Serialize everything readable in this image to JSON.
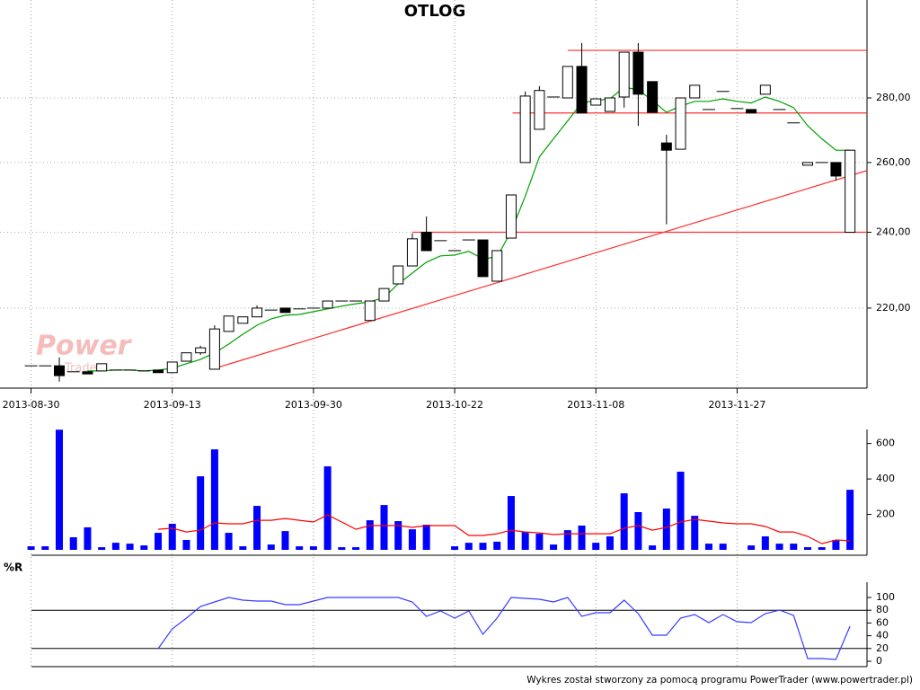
{
  "chart_data": [
    {
      "type": "candlestick",
      "title": "OTLOG",
      "categories": [
        "2013-08-30",
        null,
        null,
        null,
        null,
        null,
        null,
        null,
        null,
        null,
        "2013-09-13",
        null,
        null,
        null,
        null,
        null,
        null,
        null,
        null,
        null,
        "2013-09-30",
        null,
        null,
        null,
        null,
        null,
        null,
        null,
        null,
        null,
        "2013-10-22",
        null,
        null,
        null,
        null,
        null,
        null,
        null,
        null,
        null,
        "2013-11-08",
        null,
        null,
        null,
        null,
        null,
        null,
        null,
        null,
        null,
        "2013-11-27",
        null,
        null,
        null,
        null,
        null,
        null,
        null,
        null
      ],
      "open": [
        205.9,
        205.9,
        205.9,
        204.5,
        204.5,
        204.7,
        204.9,
        204.9,
        204.7,
        204.9,
        204.3,
        207.0,
        209.0,
        205.1,
        214.2,
        216.2,
        217.8,
        219.5,
        220.0,
        219.8,
        220.0,
        220.0,
        221.8,
        221.8,
        216.9,
        221.8,
        226.2,
        230.9,
        240.0,
        237.7,
        235.0,
        237.9,
        237.9,
        226.9,
        238.4,
        260.0,
        270.1,
        280.3,
        280.0,
        290.3,
        277.7,
        275.7,
        280.3,
        295.1,
        285.3,
        265.9,
        264.0,
        280.0,
        276.3,
        282.1,
        276.6,
        276.3,
        281.2,
        276.3,
        272.1,
        259.2,
        260.0,
        260.0,
        240.0
      ],
      "high": [
        205.9,
        205.9,
        207.9,
        204.5,
        204.5,
        206.4,
        204.9,
        204.9,
        204.7,
        204.9,
        206.8,
        209.0,
        210.7,
        215.7,
        218.0,
        217.8,
        220.7,
        219.5,
        220.0,
        219.8,
        220.0,
        221.8,
        221.8,
        221.8,
        221.8,
        225.0,
        230.9,
        239.7,
        244.4,
        237.7,
        235.0,
        237.9,
        237.9,
        235.0,
        250.5,
        282.1,
        283.8,
        280.3,
        290.3,
        298.2,
        279.7,
        280.0,
        295.1,
        298.2,
        285.3,
        268.4,
        280.0,
        284.1,
        276.3,
        282.1,
        276.6,
        276.3,
        284.1,
        276.3,
        272.1,
        260.0,
        260.0,
        260.0,
        263.7
      ],
      "low": [
        205.9,
        205.9,
        202.2,
        204.5,
        204.0,
        204.7,
        204.9,
        204.9,
        204.7,
        204.3,
        204.3,
        207.0,
        208.5,
        205.1,
        214.2,
        216.2,
        217.8,
        219.5,
        218.9,
        219.8,
        220.0,
        220.0,
        221.8,
        221.8,
        216.9,
        221.8,
        226.2,
        230.9,
        235.0,
        237.7,
        235.0,
        237.9,
        228.1,
        226.9,
        238.4,
        260.0,
        270.1,
        280.3,
        280.0,
        275.2,
        277.7,
        275.7,
        276.9,
        271.2,
        275.4,
        242.2,
        264.0,
        280.0,
        276.3,
        282.1,
        276.6,
        275.2,
        281.2,
        276.3,
        272.1,
        259.2,
        260.0,
        254.7,
        240.0
      ],
      "close": [
        205.9,
        205.9,
        203.6,
        204.5,
        204.0,
        206.4,
        204.9,
        204.9,
        204.7,
        204.3,
        206.8,
        209.0,
        210.2,
        214.8,
        218.0,
        217.8,
        220.0,
        219.5,
        218.9,
        219.8,
        220.0,
        221.8,
        221.8,
        221.8,
        221.8,
        225.0,
        230.9,
        238.2,
        235.0,
        237.7,
        235.0,
        237.9,
        228.1,
        235.0,
        250.5,
        280.6,
        282.4,
        280.3,
        290.3,
        275.2,
        279.7,
        280.0,
        295.1,
        281.2,
        275.4,
        263.7,
        280.0,
        284.1,
        276.3,
        282.1,
        276.6,
        275.2,
        284.1,
        276.3,
        272.1,
        260.0,
        260.0,
        256.0,
        263.7
      ],
      "up_color": "#ffffff",
      "down_color": "#000000",
      "overlays": [
        {
          "color": "#00a000",
          "values": [
            null,
            null,
            null,
            null,
            204.7,
            204.7,
            204.9,
            204.9,
            204.7,
            204.9,
            205.3,
            206.4,
            207.4,
            209.0,
            211.1,
            213.5,
            215.7,
            217.3,
            218.2,
            218.4,
            219.1,
            219.8,
            220.5,
            221.1,
            221.6,
            222.7,
            226.2,
            229.0,
            231.9,
            233.6,
            233.8,
            234.8,
            232.8,
            233.3,
            240.2,
            250.2,
            261.7,
            267.2,
            272.7,
            278.4,
            279.2,
            279.7,
            283.5,
            282.6,
            279.2,
            275.4,
            277.4,
            278.9,
            278.9,
            279.7,
            278.9,
            278.4,
            280.3,
            278.9,
            276.9,
            271.2,
            267.2,
            263.7,
            263.7
          ]
        }
      ],
      "segments_color": "#ff3030",
      "segments": [
        {
          "x": [
            38,
            59.2
          ],
          "values": [
            295.7,
            295.7
          ]
        },
        {
          "x": [
            34.1,
            59.2
          ],
          "values": [
            275.2,
            275.2
          ]
        },
        {
          "x": [
            27,
            59.2
          ],
          "values": [
            240.0,
            240.0
          ]
        },
        {
          "x": [
            13,
            59.2
          ],
          "values": [
            205.3,
            257.6
          ]
        }
      ],
      "xlim": [
        -2.2,
        59.2
      ],
      "log": true,
      "ylim": [
        200.7,
        313.3
      ],
      "yticks": [
        {
          "value": 220,
          "label": "220,00"
        },
        {
          "value": 240,
          "label": "240,00"
        },
        {
          "value": 260,
          "label": "260,00"
        },
        {
          "value": 280,
          "label": "280,00"
        }
      ],
      "grid": true
    },
    {
      "type": "bar",
      "color": "#0000ff",
      "values": [
        20,
        20,
        678,
        71,
        127,
        15,
        40,
        35,
        25,
        96,
        147,
        56,
        415,
        567,
        96,
        20,
        248,
        30,
        106,
        20,
        20,
        471,
        15,
        15,
        167,
        253,
        162,
        116,
        142,
        null,
        20,
        40,
        40,
        46,
        304,
        101,
        91,
        30,
        111,
        137,
        40,
        76,
        319,
        213,
        25,
        233,
        441,
        192,
        35,
        35,
        null,
        25,
        76,
        35,
        35,
        15,
        15,
        56,
        339
      ],
      "overlays": [
        {
          "color": "#ff0000",
          "values": [
            null,
            null,
            null,
            null,
            null,
            null,
            null,
            null,
            null,
            116,
            122,
            101,
            111,
            152,
            147,
            147,
            167,
            167,
            177,
            167,
            157,
            197,
            157,
            116,
            137,
            137,
            137,
            127,
            137,
            137,
            137,
            81,
            81,
            91,
            111,
            101,
            96,
            86,
            91,
            91,
            91,
            91,
            122,
            137,
            111,
            127,
            157,
            172,
            162,
            152,
            147,
            147,
            132,
            101,
            101,
            76,
            35,
            56,
            51
          ]
        }
      ],
      "ylim": [
        0,
        720
      ],
      "yticks": [
        200,
        400,
        600
      ],
      "grid": false
    },
    {
      "type": "line",
      "title": "%R",
      "color": "#3a3aff",
      "values": [
        null,
        null,
        null,
        null,
        null,
        null,
        null,
        null,
        null,
        19.7,
        50.7,
        67.6,
        85.9,
        93,
        100,
        95.8,
        94.4,
        94.4,
        88.7,
        88.7,
        94.4,
        100,
        100,
        100,
        100,
        100,
        100,
        93,
        70.4,
        78.9,
        67.6,
        78.9,
        42.3,
        67.6,
        100,
        98.6,
        97.2,
        93,
        100,
        70.4,
        76,
        76,
        95.8,
        74.6,
        40.8,
        40.8,
        67.6,
        73.2,
        60.6,
        73.2,
        62,
        60.6,
        74.6,
        80.3,
        71.8,
        4.2,
        4.2,
        2.8,
        54.9
      ],
      "reference_lines": [
        20,
        80
      ],
      "ylim": [
        -8,
        128
      ],
      "yticks": [
        0,
        20,
        40,
        60,
        80,
        100
      ],
      "grid": false
    }
  ],
  "logo": {
    "primary": "Power",
    "secondary": "Trader"
  },
  "footer": "Wykres został stworzony za pomocą programu PowerTrader (www.powertrader.pl)"
}
